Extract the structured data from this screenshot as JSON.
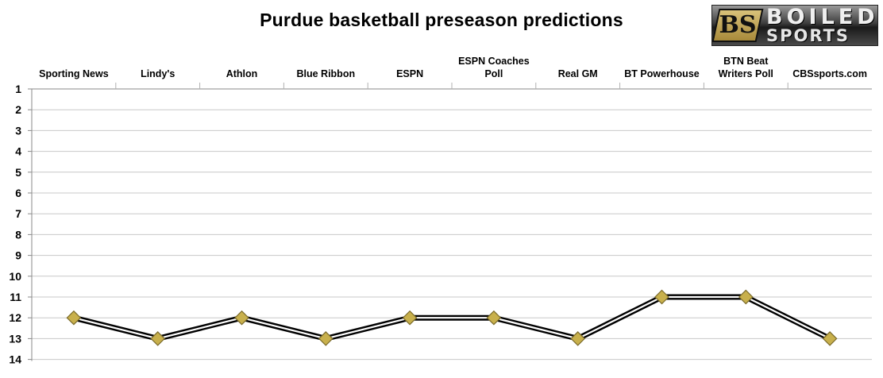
{
  "chart_data": {
    "type": "line",
    "title": "Purdue basketball preseason predictions",
    "categories": [
      [
        "Sporting News"
      ],
      [
        "Lindy's"
      ],
      [
        "Athlon"
      ],
      [
        "Blue Ribbon"
      ],
      [
        "ESPN"
      ],
      [
        "ESPN Coaches",
        "Poll"
      ],
      [
        "Real GM"
      ],
      [
        "BT Powerhouse"
      ],
      [
        "BTN Beat",
        "Writers Poll"
      ],
      [
        "CBSsports.com"
      ]
    ],
    "series": [
      {
        "values": [
          12,
          13,
          12,
          13,
          12,
          12,
          13,
          11,
          11,
          13
        ]
      }
    ],
    "y_ticks": [
      "1",
      "2",
      "3",
      "4",
      "5",
      "6",
      "7",
      "8",
      "9",
      "10",
      "11",
      "12",
      "13",
      "14"
    ],
    "ylim": [
      1,
      14
    ],
    "y_reversed": true,
    "x_axis_position": "top",
    "grid": "horizontal",
    "colors": {
      "line_outer": "#000000",
      "line_inner": "#ffffff",
      "marker_fill": "#c8b04c",
      "marker_edge": "#7a6a2a",
      "grid": "#c8c8c8"
    }
  },
  "logo": {
    "mark": "BS",
    "top": "BOILED",
    "bottom": "SPORTS"
  }
}
